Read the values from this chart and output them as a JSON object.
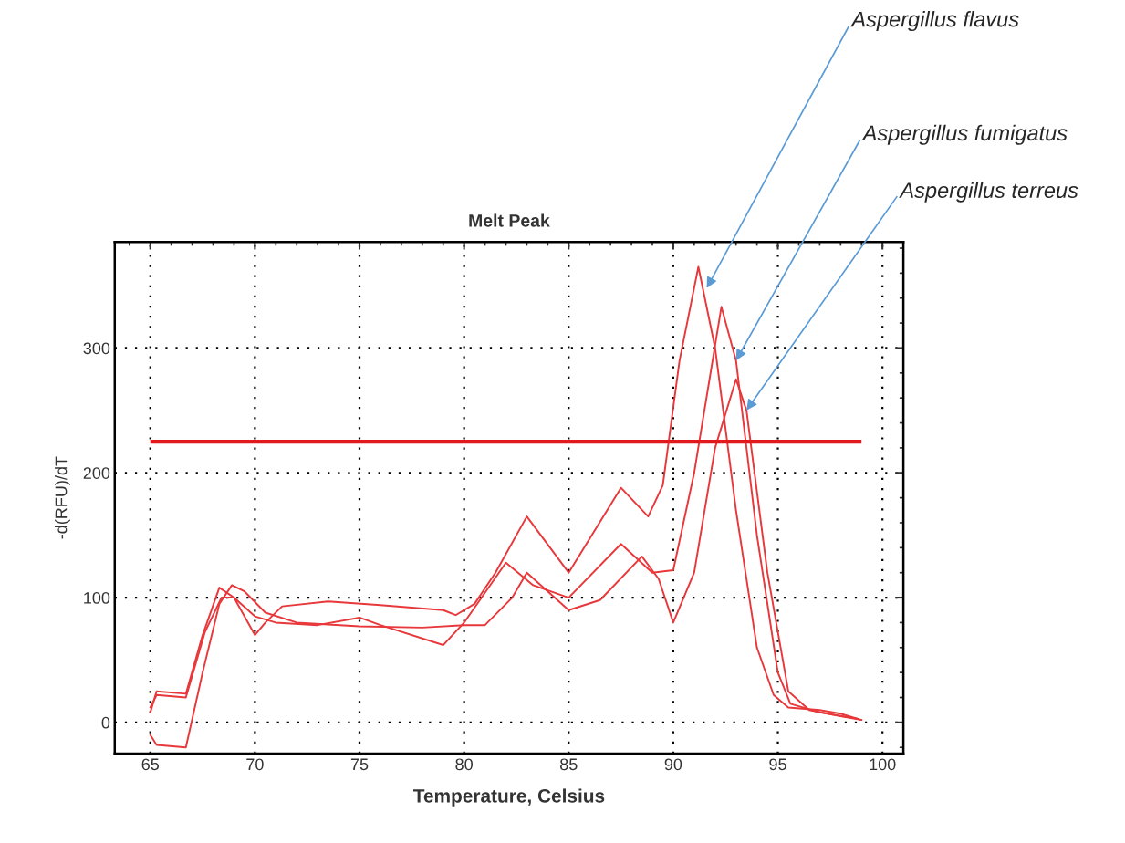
{
  "chart_data": {
    "type": "line",
    "title": "Melt Peak",
    "xlabel": "Temperature, Celsius",
    "ylabel": "-d(RFU)/dT",
    "xlim": [
      63.3,
      101
    ],
    "ylim": [
      -25,
      385
    ],
    "xticks": [
      65,
      70,
      75,
      80,
      85,
      90,
      95,
      100
    ],
    "yticks": [
      0,
      100,
      200,
      300
    ],
    "grid": true,
    "legend": false,
    "line_style": "solid",
    "marker": "none",
    "ref_lines": [
      {
        "axis": "y",
        "value": 225,
        "color": "#e31a1c"
      }
    ],
    "annotations": [
      {
        "text": "Aspergillus flavus",
        "x": 91.6,
        "y": 348
      },
      {
        "text": "Aspergillus fumigatus",
        "x": 93,
        "y": 290
      },
      {
        "text": "Aspergillus terreus",
        "x": 93.5,
        "y": 250
      }
    ],
    "series": [
      {
        "color": "#e8383b",
        "x": [
          65,
          65.3,
          66.7,
          67.5,
          68.3,
          69,
          70,
          70.5,
          71.3,
          73.5,
          76,
          79,
          79.6,
          80.5,
          81.5,
          83,
          85,
          87.5,
          88.8,
          89.5,
          90.3,
          91.2,
          92,
          93,
          94,
          94.8,
          95.5,
          97,
          98,
          99
        ],
        "values": [
          8,
          25,
          23,
          70,
          108,
          100,
          70,
          80,
          93,
          97,
          94,
          90,
          86,
          95,
          120,
          165,
          120,
          188,
          165,
          190,
          290,
          365,
          300,
          170,
          60,
          22,
          12,
          10,
          7,
          2
        ]
      },
      {
        "color": "#e8383b",
        "x": [
          65,
          65.3,
          66.7,
          67.6,
          68.4,
          69,
          70,
          71,
          73,
          75,
          76,
          79,
          80,
          82,
          83.3,
          85,
          87.5,
          89,
          90,
          91,
          92.3,
          93,
          94,
          95,
          95.6,
          97,
          98.8
        ],
        "values": [
          12,
          22,
          20,
          72,
          100,
          100,
          85,
          80,
          78,
          84,
          78,
          62,
          80,
          128,
          110,
          100,
          143,
          120,
          122,
          200,
          333,
          290,
          150,
          40,
          15,
          8,
          3
        ]
      },
      {
        "color": "#e8383b",
        "x": [
          65,
          65.3,
          66.7,
          67.5,
          68.3,
          68.9,
          69.5,
          70.5,
          72,
          75,
          78,
          80,
          81,
          82.3,
          83,
          85,
          86.5,
          88.5,
          89.3,
          90,
          91,
          92,
          93,
          93.5,
          94.5,
          95.5,
          96.5,
          98,
          99
        ],
        "values": [
          -10,
          -18,
          -20,
          40,
          95,
          110,
          105,
          88,
          80,
          77,
          76,
          78,
          78,
          100,
          120,
          90,
          98,
          133,
          115,
          80,
          120,
          220,
          275,
          250,
          120,
          25,
          10,
          5,
          2
        ]
      }
    ]
  }
}
